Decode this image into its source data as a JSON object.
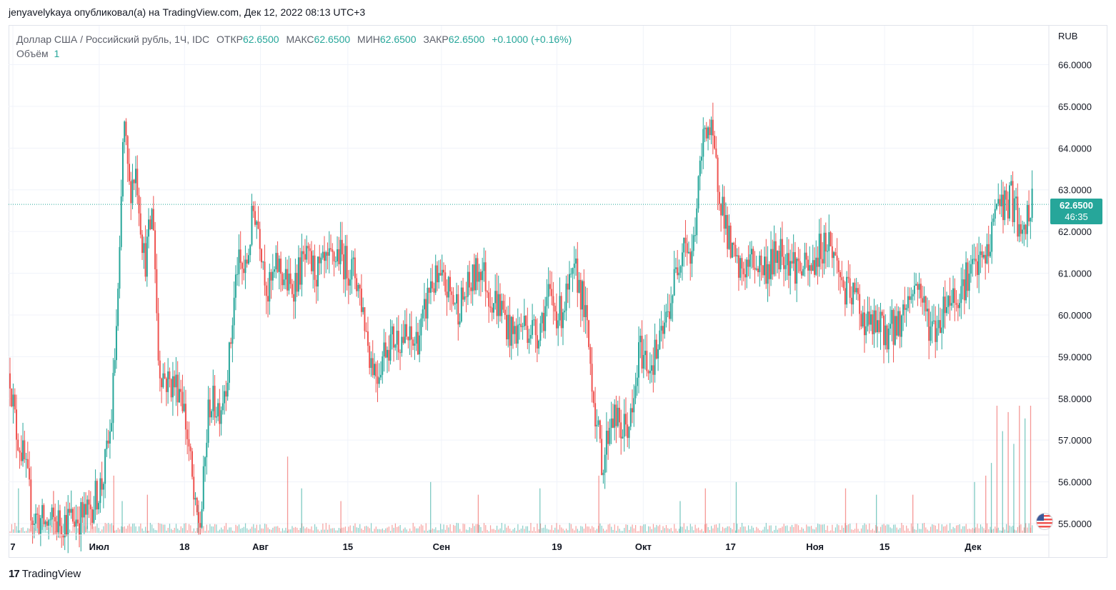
{
  "header": {
    "published_text": "jenyavelykaya опубликовал(а) на TradingView.com, Дек 12, 2022 08:13 UTC+3"
  },
  "legend": {
    "symbol": "Доллар США / Российский рубль, 1Ч, IDC",
    "open_label": "ОТКР",
    "open_value": "62.6500",
    "high_label": "МАКС",
    "high_value": "62.6500",
    "low_label": "МИН",
    "low_value": "62.6500",
    "close_label": "ЗАКР",
    "close_value": "62.6500",
    "change": "+0.1000 (+0.16%)",
    "volume_label": "Объём",
    "volume_value": "1"
  },
  "price_axis": {
    "currency": "RUB",
    "current_price": "62.6500",
    "countdown": "46:35"
  },
  "footer": {
    "brand": "TradingView",
    "logo_mark": "17"
  },
  "colors": {
    "up": "#26a69a",
    "down": "#ef5350",
    "grid": "#f0f3fa",
    "axis_text": "#131722",
    "price_line": "#26a69a"
  },
  "icons": {
    "flag": "us-flag-icon",
    "logo": "tradingview-logo-icon"
  },
  "chart_data": {
    "type": "candlestick",
    "title": "Доллар США / Российский рубль, 1Ч, IDC",
    "xlabel": "",
    "ylabel": "",
    "ylim": [
      54.8,
      66.6
    ],
    "y_ticks": [
      "66.0000",
      "65.0000",
      "64.0000",
      "63.0000",
      "62.0000",
      "61.0000",
      "60.0000",
      "59.0000",
      "58.0000",
      "57.0000",
      "56.0000",
      "55.0000"
    ],
    "x_ticks": [
      "7",
      "Июл",
      "18",
      "Авг",
      "15",
      "Сен",
      "19",
      "Окт",
      "17",
      "Ноя",
      "15",
      "Дек"
    ],
    "grid": true,
    "current_price": 62.65,
    "price_path": [
      [
        0,
        58.6
      ],
      [
        0.4,
        57.3
      ],
      [
        1,
        56.5
      ],
      [
        1.6,
        55.2
      ],
      [
        2.5,
        55.0
      ],
      [
        4.2,
        55.1
      ],
      [
        5.5,
        55.2
      ],
      [
        6.6,
        56.0
      ],
      [
        7.2,
        57.3
      ],
      [
        7.8,
        61.0
      ],
      [
        8.1,
        64.7
      ],
      [
        8.5,
        63.0
      ],
      [
        9.0,
        63.5
      ],
      [
        9.6,
        61.2
      ],
      [
        10.2,
        62.6
      ],
      [
        10.6,
        58.8
      ],
      [
        11.2,
        58.4
      ],
      [
        12.2,
        58.3
      ],
      [
        12.8,
        56.7
      ],
      [
        13.2,
        55.2
      ],
      [
        13.6,
        55.0
      ],
      [
        14.2,
        57.9
      ],
      [
        15.0,
        57.8
      ],
      [
        15.6,
        58.8
      ],
      [
        16.2,
        61.2
      ],
      [
        16.8,
        61.0
      ],
      [
        17.4,
        62.6
      ],
      [
        17.8,
        62.0
      ],
      [
        18.4,
        60.5
      ],
      [
        19.1,
        61.2
      ],
      [
        20.0,
        60.6
      ],
      [
        21.0,
        61.3
      ],
      [
        22.0,
        61.0
      ],
      [
        22.8,
        61.2
      ],
      [
        23.4,
        61.5
      ],
      [
        24.0,
        61.2
      ],
      [
        24.6,
        61.0
      ],
      [
        25.0,
        60.5
      ],
      [
        25.7,
        59.0
      ],
      [
        26.2,
        58.6
      ],
      [
        26.8,
        59.3
      ],
      [
        27.8,
        59.5
      ],
      [
        28.8,
        59.3
      ],
      [
        29.4,
        59.7
      ],
      [
        30.0,
        60.8
      ],
      [
        31.0,
        60.7
      ],
      [
        32.0,
        60.2
      ],
      [
        33.0,
        60.8
      ],
      [
        33.6,
        61.2
      ],
      [
        34.2,
        60.5
      ],
      [
        35.0,
        60.2
      ],
      [
        35.8,
        59.5
      ],
      [
        36.6,
        59.8
      ],
      [
        37.6,
        59.6
      ],
      [
        38.4,
        60.4
      ],
      [
        39.2,
        60.0
      ],
      [
        39.8,
        60.5
      ],
      [
        40.4,
        61.0
      ],
      [
        40.9,
        60.3
      ],
      [
        41.3,
        59.2
      ],
      [
        41.9,
        57.2
      ],
      [
        42.3,
        56.4
      ],
      [
        42.9,
        57.7
      ],
      [
        43.6,
        57.2
      ],
      [
        44.4,
        57.5
      ],
      [
        44.9,
        59.2
      ],
      [
        45.6,
        58.8
      ],
      [
        46.3,
        59.2
      ],
      [
        46.9,
        60.0
      ],
      [
        47.5,
        61.0
      ],
      [
        48.1,
        62.0
      ],
      [
        48.6,
        61.2
      ],
      [
        49.1,
        63.0
      ],
      [
        49.6,
        64.7
      ],
      [
        50.0,
        64.3
      ],
      [
        50.4,
        63.4
      ],
      [
        50.9,
        62.5
      ],
      [
        51.4,
        61.5
      ],
      [
        52.0,
        61.0
      ],
      [
        53.0,
        61.3
      ],
      [
        54.0,
        61.1
      ],
      [
        55.0,
        61.6
      ],
      [
        56.0,
        61.2
      ],
      [
        57.0,
        61.0
      ],
      [
        57.8,
        61.6
      ],
      [
        58.4,
        61.8
      ],
      [
        59.0,
        61.2
      ],
      [
        59.6,
        60.5
      ],
      [
        60.4,
        60.4
      ],
      [
        61.0,
        59.8
      ],
      [
        61.8,
        59.7
      ],
      [
        62.6,
        59.6
      ],
      [
        63.4,
        59.8
      ],
      [
        64.2,
        60.5
      ],
      [
        64.8,
        60.8
      ],
      [
        65.4,
        59.9
      ],
      [
        66.0,
        59.6
      ],
      [
        66.8,
        60.4
      ],
      [
        67.6,
        60.5
      ],
      [
        68.4,
        61.0
      ],
      [
        69.2,
        61.2
      ],
      [
        69.8,
        61.5
      ],
      [
        70.4,
        62.8
      ],
      [
        71.0,
        62.6
      ],
      [
        71.4,
        62.8
      ],
      [
        71.8,
        62.4
      ],
      [
        72.2,
        61.6
      ],
      [
        72.6,
        62.4
      ],
      [
        73.0,
        62.65
      ]
    ],
    "volume_spikes": [
      [
        0.6,
        0.35
      ],
      [
        7.4,
        0.45
      ],
      [
        8.0,
        0.25
      ],
      [
        9.8,
        0.3
      ],
      [
        13.4,
        0.22
      ],
      [
        19.8,
        0.6
      ],
      [
        20.8,
        0.35
      ],
      [
        23.6,
        0.25
      ],
      [
        30.0,
        0.4
      ],
      [
        33.4,
        0.3
      ],
      [
        37.8,
        0.35
      ],
      [
        42.0,
        0.45
      ],
      [
        47.8,
        0.25
      ],
      [
        49.6,
        0.35
      ],
      [
        51.8,
        0.4
      ],
      [
        59.6,
        0.35
      ],
      [
        61.8,
        0.3
      ],
      [
        64.4,
        0.3
      ],
      [
        68.8,
        0.4
      ],
      [
        69.6,
        0.45
      ],
      [
        70.0,
        0.55
      ],
      [
        70.4,
        1.0
      ],
      [
        70.8,
        0.8
      ],
      [
        71.2,
        0.95
      ],
      [
        71.6,
        0.7
      ],
      [
        72.0,
        1.0
      ],
      [
        72.4,
        0.9
      ],
      [
        72.8,
        1.0
      ]
    ]
  }
}
